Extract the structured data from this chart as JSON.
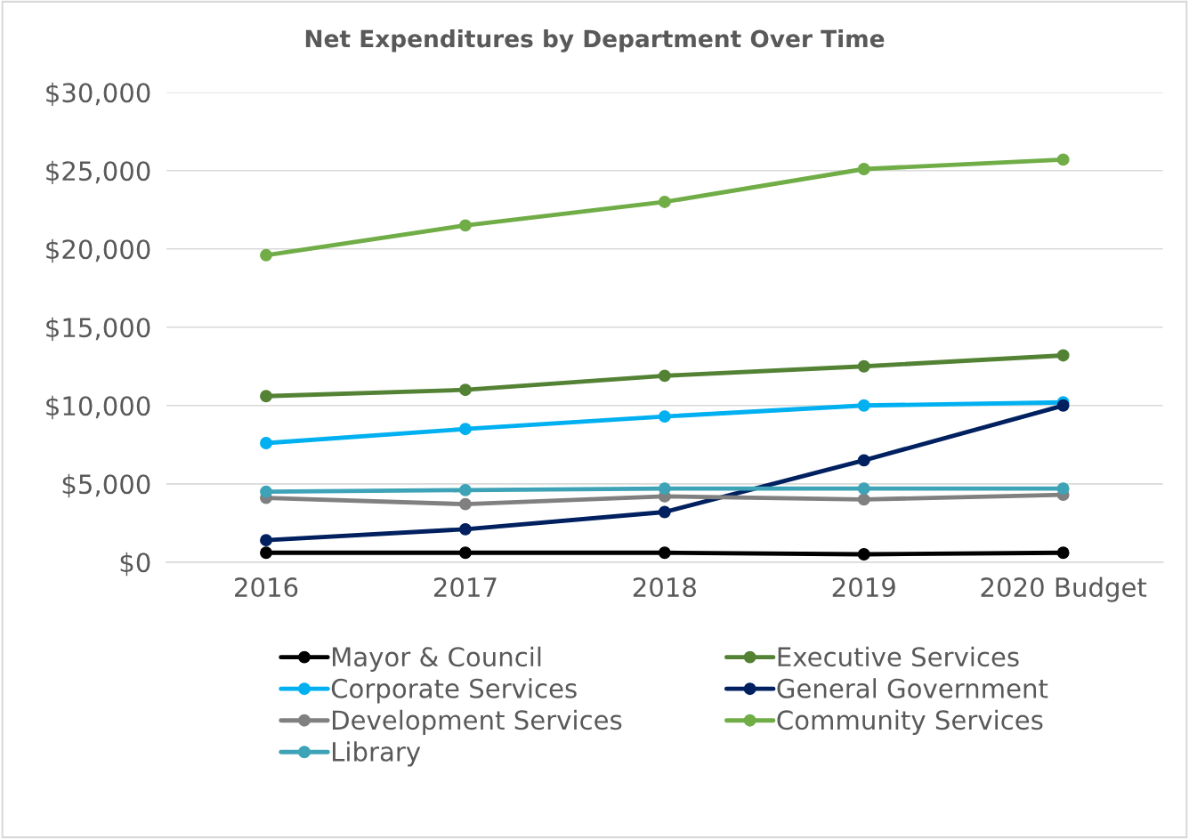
{
  "chart_data": {
    "type": "line",
    "title": "Net Expenditures by Department Over Time",
    "categories": [
      "2016",
      "2017",
      "2018",
      "2019",
      "2020 Budget"
    ],
    "series": [
      {
        "name": "Mayor & Council",
        "color": "#000000",
        "values": [
          600,
          600,
          600,
          500,
          600
        ]
      },
      {
        "name": "Executive Services",
        "color": "#548235",
        "values": [
          10600,
          11000,
          11900,
          12500,
          13200
        ]
      },
      {
        "name": "Corporate Services",
        "color": "#00b0f0",
        "values": [
          7600,
          8500,
          9300,
          10000,
          10200
        ]
      },
      {
        "name": "General Government",
        "color": "#002060",
        "values": [
          1400,
          2100,
          3200,
          6500,
          10000
        ]
      },
      {
        "name": "Development Services",
        "color": "#808080",
        "values": [
          4100,
          3700,
          4200,
          4000,
          4300
        ]
      },
      {
        "name": "Community Services",
        "color": "#70ad47",
        "values": [
          19600,
          21500,
          23000,
          25100,
          25700
        ]
      },
      {
        "name": "Library",
        "color": "#3ea3b7",
        "values": [
          4500,
          4600,
          4700,
          4700,
          4700
        ]
      }
    ],
    "ylim": [
      0,
      30000
    ],
    "yticks": [
      {
        "value": 0,
        "label": "$0"
      },
      {
        "value": 5000,
        "label": "$5,000"
      },
      {
        "value": 10000,
        "label": "$10,000"
      },
      {
        "value": 15000,
        "label": "$15,000"
      },
      {
        "value": 20000,
        "label": "$20,000"
      },
      {
        "value": 25000,
        "label": "$25,000"
      },
      {
        "value": 30000,
        "label": "$30,000"
      }
    ],
    "grid": "y",
    "legend": "bottom",
    "marker": "circle",
    "line_style": "solid"
  }
}
